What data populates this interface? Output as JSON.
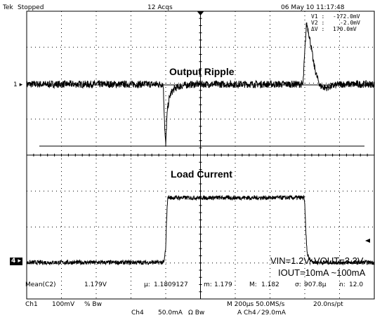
{
  "header": {
    "brand": "Tek",
    "run_state": "Stopped",
    "acqs": "12 Acqs",
    "timestamp": "06 May 10 11:17:48"
  },
  "cursors": {
    "v1_label": "V1 :",
    "v1_value": "-172.0mV",
    "v2_label": "V2 :",
    "v2_value": "-2.0mV",
    "dv_label": "ΔV :",
    "dv_value": "170.0mV"
  },
  "markers": {
    "ch1": "1",
    "ch4": "4"
  },
  "annotations": {
    "ripple": "Output Ripple",
    "current": "Load  Current",
    "vin_vout": "VIN=1.2V, VOUT=3.3V",
    "iout": "IOUT=10mA ~100mA"
  },
  "measurement": {
    "label": "Mean(C2)",
    "value": "1.179V",
    "mu_label": "μ:",
    "mu_value": "1.1809127",
    "m_label": "m:",
    "m_value": "1.179",
    "M_label": "M:",
    "M_value": "1.182",
    "sigma_label": "σ:",
    "sigma_value": "907.8μ",
    "n_label": "n:",
    "n_value": "12.0"
  },
  "settings": {
    "ch1": "Ch1",
    "ch1_scale": "100mV",
    "ch1_coupling": "%  Bw",
    "timebase": "M 200μs 50.0MS/s",
    "resolution": "20.0ns/pt",
    "ch4": "Ch4",
    "ch4_scale": "50.0mA",
    "ch4_coupling": "Ω  Bw",
    "trigger": "A  Ch4  ⁄  29.0mA"
  },
  "colors": {
    "trace": "#000000",
    "background": "#ffffff",
    "grid": "#000000"
  },
  "chart_data": {
    "type": "line",
    "title": "",
    "divisions": {
      "x": 10,
      "y": 8
    },
    "xlim": [
      -1000,
      1000
    ],
    "x_unit": "μs",
    "grid": true,
    "series": [
      {
        "name": "Output Ripple",
        "channel": "Ch1",
        "y_unit": "mV",
        "ylim": [
          -400,
          400
        ],
        "x": [
          -1000,
          -300,
          -215,
          -210,
          -205,
          -200,
          -195,
          -190,
          -180,
          -170,
          -150,
          -120,
          -90,
          -60,
          0,
          200,
          500,
          590,
          600,
          610,
          620,
          635,
          650,
          670,
          690,
          720,
          760,
          800,
          1000
        ],
        "y": [
          0,
          0,
          0,
          -60,
          -130,
          -172,
          -110,
          -70,
          -40,
          -25,
          -12,
          -6,
          -3,
          -1,
          0,
          0,
          0,
          0,
          90,
          170,
          150,
          110,
          60,
          20,
          -5,
          -10,
          -5,
          0,
          0
        ],
        "noise_band": 10,
        "cursor_v1": -172,
        "cursor_v2": -2
      },
      {
        "name": "Load Current",
        "channel": "Ch4",
        "y_unit": "mA",
        "ylim": [
          -200,
          200
        ],
        "x": [
          -1000,
          -210,
          -200,
          -195,
          -190,
          -185,
          -180,
          -150,
          595,
          600,
          605,
          610,
          615,
          625,
          640,
          660,
          700,
          1000
        ],
        "y": [
          -100,
          -100,
          -80,
          -40,
          -15,
          -8,
          -10,
          -10,
          -10,
          -20,
          -50,
          -75,
          -88,
          -95,
          -98,
          -100,
          -100,
          -100
        ],
        "noise_band": 3
      }
    ]
  }
}
